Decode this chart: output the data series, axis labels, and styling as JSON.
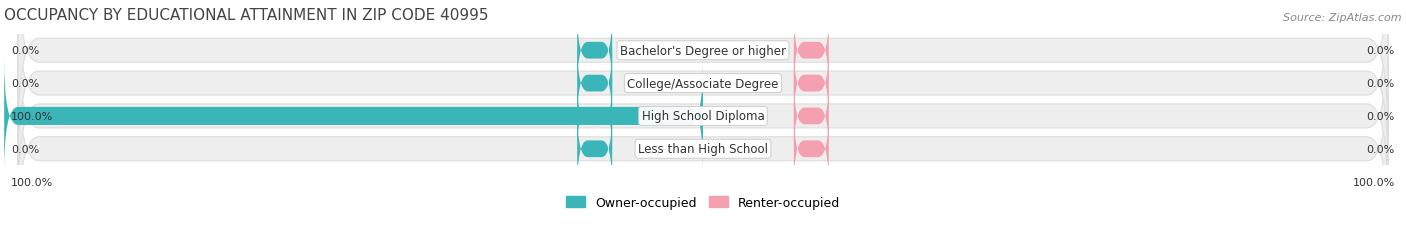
{
  "title": "OCCUPANCY BY EDUCATIONAL ATTAINMENT IN ZIP CODE 40995",
  "source": "Source: ZipAtlas.com",
  "categories": [
    "Less than High School",
    "High School Diploma",
    "College/Associate Degree",
    "Bachelor's Degree or higher"
  ],
  "owner_values": [
    0.0,
    100.0,
    0.0,
    0.0
  ],
  "renter_values": [
    0.0,
    0.0,
    0.0,
    0.0
  ],
  "owner_color": "#3ab5b8",
  "renter_color": "#f4a0b0",
  "bar_bg_color": "#eeeeee",
  "bar_bg_border": "#dddddd",
  "background_color": "#ffffff",
  "xlim": [
    -100,
    100
  ],
  "title_fontsize": 11,
  "label_fontsize": 8.5,
  "tick_fontsize": 8,
  "legend_fontsize": 9,
  "source_fontsize": 8
}
